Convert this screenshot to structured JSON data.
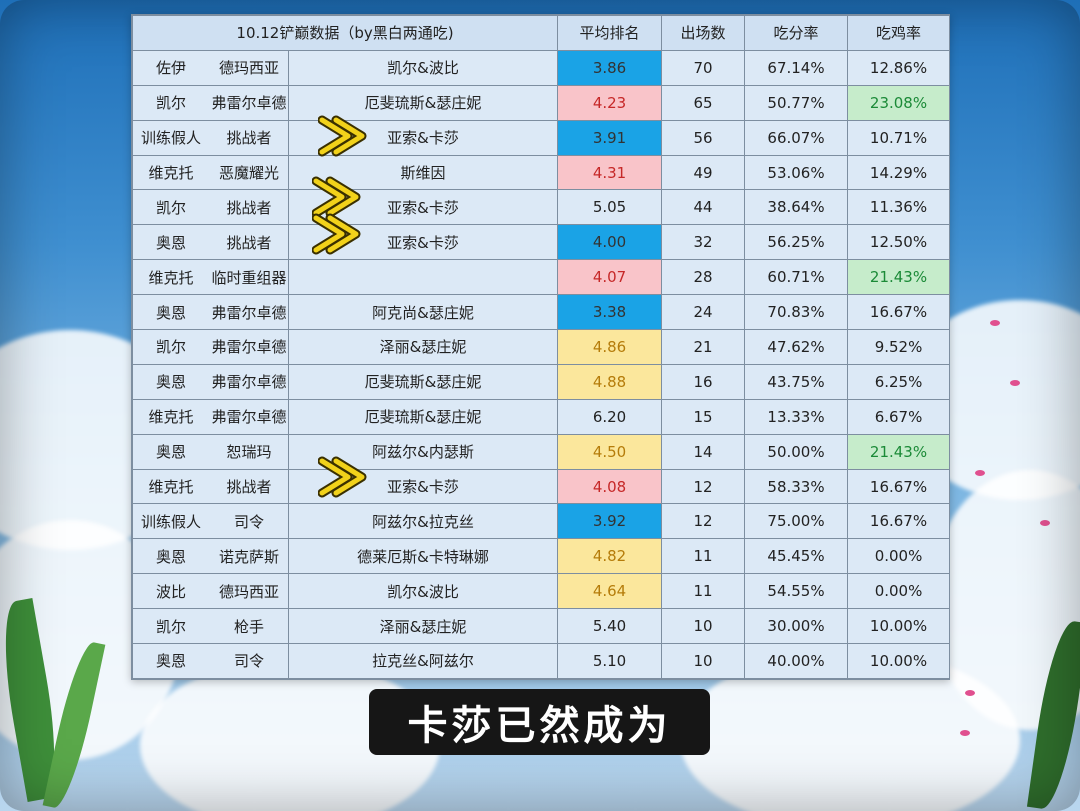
{
  "header": {
    "title": "10.12铲巅数据（by黑白两通吃)",
    "avg_rank": "平均排名",
    "games": "出场数",
    "top4_rate": "吃分率",
    "win_rate": "吃鸡率"
  },
  "rows": [
    {
      "hero": "佐伊",
      "aug": "德玛西亚",
      "combo": "凯尔&波比",
      "avg": "3.86",
      "games": "70",
      "top4": "67.14%",
      "win": "12.86%",
      "avg_color": "blue",
      "win_color": ""
    },
    {
      "hero": "凯尔",
      "aug": "弗雷尔卓德",
      "combo": "厄斐琉斯&瑟庄妮",
      "avg": "4.23",
      "games": "65",
      "top4": "50.77%",
      "win": "23.08%",
      "avg_color": "pink",
      "win_color": "green"
    },
    {
      "hero": "训练假人",
      "aug": "挑战者",
      "combo": "亚索&卡莎",
      "avg": "3.91",
      "games": "56",
      "top4": "66.07%",
      "win": "10.71%",
      "avg_color": "blue",
      "win_color": ""
    },
    {
      "hero": "维克托",
      "aug": "恶魔耀光",
      "combo": "斯维因",
      "avg": "4.31",
      "games": "49",
      "top4": "53.06%",
      "win": "14.29%",
      "avg_color": "pink",
      "win_color": ""
    },
    {
      "hero": "凯尔",
      "aug": "挑战者",
      "combo": "亚索&卡莎",
      "avg": "5.05",
      "games": "44",
      "top4": "38.64%",
      "win": "11.36%",
      "avg_color": "",
      "win_color": ""
    },
    {
      "hero": "奥恩",
      "aug": "挑战者",
      "combo": "亚索&卡莎",
      "avg": "4.00",
      "games": "32",
      "top4": "56.25%",
      "win": "12.50%",
      "avg_color": "blue",
      "win_color": ""
    },
    {
      "hero": "维克托",
      "aug": "临时重组器",
      "combo": "",
      "avg": "4.07",
      "games": "28",
      "top4": "60.71%",
      "win": "21.43%",
      "avg_color": "pink",
      "win_color": "green"
    },
    {
      "hero": "奥恩",
      "aug": "弗雷尔卓德",
      "combo": "阿克尚&瑟庄妮",
      "avg": "3.38",
      "games": "24",
      "top4": "70.83%",
      "win": "16.67%",
      "avg_color": "blue",
      "win_color": ""
    },
    {
      "hero": "凯尔",
      "aug": "弗雷尔卓德",
      "combo": "泽丽&瑟庄妮",
      "avg": "4.86",
      "games": "21",
      "top4": "47.62%",
      "win": "9.52%",
      "avg_color": "yellow",
      "win_color": ""
    },
    {
      "hero": "奥恩",
      "aug": "弗雷尔卓德",
      "combo": "厄斐琉斯&瑟庄妮",
      "avg": "4.88",
      "games": "16",
      "top4": "43.75%",
      "win": "6.25%",
      "avg_color": "yellow",
      "win_color": ""
    },
    {
      "hero": "维克托",
      "aug": "弗雷尔卓德",
      "combo": "厄斐琉斯&瑟庄妮",
      "avg": "6.20",
      "games": "15",
      "top4": "13.33%",
      "win": "6.67%",
      "avg_color": "",
      "win_color": ""
    },
    {
      "hero": "奥恩",
      "aug": "恕瑞玛",
      "combo": "阿兹尔&内瑟斯",
      "avg": "4.50",
      "games": "14",
      "top4": "50.00%",
      "win": "21.43%",
      "avg_color": "yellow",
      "win_color": "green"
    },
    {
      "hero": "维克托",
      "aug": "挑战者",
      "combo": "亚索&卡莎",
      "avg": "4.08",
      "games": "12",
      "top4": "58.33%",
      "win": "16.67%",
      "avg_color": "pink",
      "win_color": ""
    },
    {
      "hero": "训练假人",
      "aug": "司令",
      "combo": "阿兹尔&拉克丝",
      "avg": "3.92",
      "games": "12",
      "top4": "75.00%",
      "win": "16.67%",
      "avg_color": "blue",
      "win_color": ""
    },
    {
      "hero": "奥恩",
      "aug": "诺克萨斯",
      "combo": "德莱厄斯&卡特琳娜",
      "avg": "4.82",
      "games": "11",
      "top4": "45.45%",
      "win": "0.00%",
      "avg_color": "yellow",
      "win_color": ""
    },
    {
      "hero": "波比",
      "aug": "德玛西亚",
      "combo": "凯尔&波比",
      "avg": "4.64",
      "games": "11",
      "top4": "54.55%",
      "win": "0.00%",
      "avg_color": "yellow",
      "win_color": ""
    },
    {
      "hero": "凯尔",
      "aug": "枪手",
      "combo": "泽丽&瑟庄妮",
      "avg": "5.40",
      "games": "10",
      "top4": "30.00%",
      "win": "10.00%",
      "avg_color": "",
      "win_color": ""
    },
    {
      "hero": "奥恩",
      "aug": "司令",
      "combo": "拉克丝&阿兹尔",
      "avg": "5.10",
      "games": "10",
      "top4": "40.00%",
      "win": "10.00%",
      "avg_color": "",
      "win_color": ""
    }
  ],
  "arrow_color": "#f2d21a",
  "caption": "卡莎已然成为"
}
